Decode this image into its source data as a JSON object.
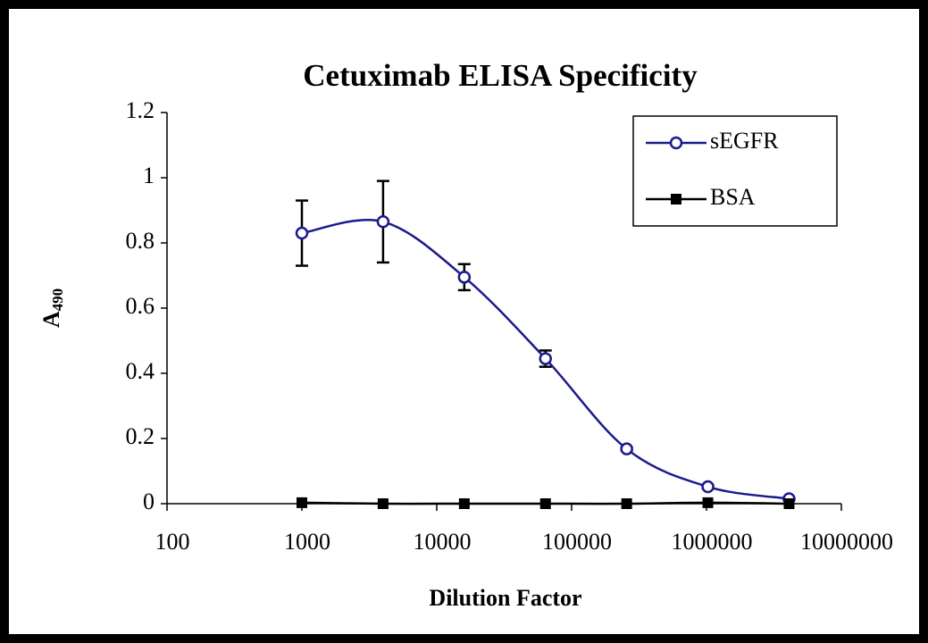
{
  "chart_data": {
    "type": "line",
    "title": "Cetuximab ELISA Specificity",
    "xlabel": "Dilution Factor",
    "ylabel": "A",
    "ylabel_sub": "490",
    "xscale": "log",
    "xlim": [
      100,
      10000000
    ],
    "xticks": [
      100,
      1000,
      10000,
      100000,
      1000000,
      10000000
    ],
    "ylim": [
      0,
      1.2
    ],
    "yticks": [
      0,
      0.2,
      0.4,
      0.6,
      0.8,
      1,
      1.2
    ],
    "x": [
      1000,
      4000,
      16000,
      64000,
      256000,
      1024000,
      4096000
    ],
    "legend": "top-right",
    "series": [
      {
        "name": "sEGFR",
        "color": "#1a1a8c",
        "marker": "open-circle",
        "smooth": true,
        "values": [
          0.83,
          0.865,
          0.695,
          0.445,
          0.168,
          0.052,
          0.015
        ],
        "errors": [
          0.1,
          0.125,
          0.04,
          0.025,
          0.005,
          0.005,
          0.003
        ]
      },
      {
        "name": "BSA",
        "color": "#000000",
        "marker": "filled-square",
        "smooth": true,
        "values": [
          0.003,
          0,
          0,
          0,
          0,
          0.003,
          0
        ]
      }
    ]
  }
}
